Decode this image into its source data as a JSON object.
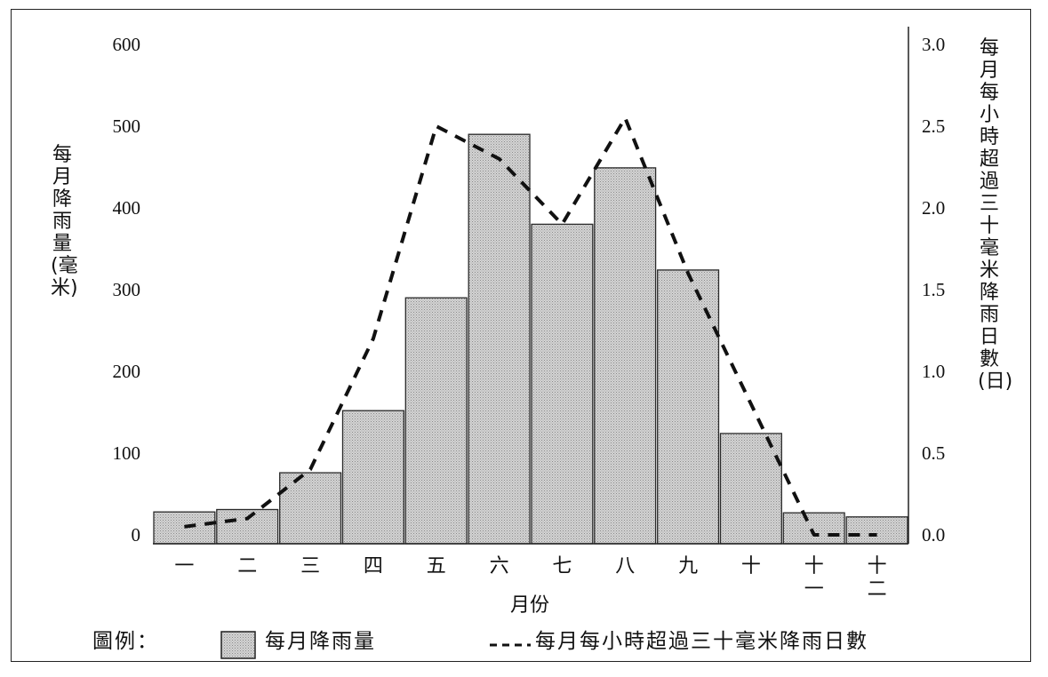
{
  "chart_data": {
    "type": "bar",
    "xlabel": "月份",
    "categories": [
      "一",
      "二",
      "三",
      "四",
      "五",
      "六",
      "七",
      "八",
      "九",
      "十",
      "十一",
      "十二"
    ],
    "series": [
      {
        "name": "每月降雨量",
        "type": "bar",
        "axis": "left",
        "values": [
          28,
          31,
          76,
          152,
          290,
          490,
          380,
          449,
          324,
          124,
          27,
          22
        ]
      },
      {
        "name": "每月每小時超過三十毫米降雨日數",
        "type": "line",
        "style": "dashed",
        "axis": "right",
        "values": [
          0.05,
          0.1,
          0.4,
          1.2,
          2.5,
          2.3,
          1.9,
          2.55,
          1.6,
          0.8,
          0.0,
          0.0
        ]
      }
    ],
    "y_left": {
      "label": "每月降雨量(毫米)",
      "range": [
        0,
        600
      ],
      "ticks": [
        "0",
        "100",
        "200",
        "300",
        "400",
        "500",
        "600"
      ]
    },
    "y_right": {
      "label": "每月每小時超過三十毫米降雨日數(日)",
      "range": [
        0,
        3.0
      ],
      "ticks": [
        "0.0",
        "0.5",
        "1.0",
        "1.5",
        "2.0",
        "2.5",
        "3.0"
      ]
    },
    "grid": false,
    "legend_position": "bottom"
  },
  "legend": {
    "title": "圖例：",
    "bar_label": "每月降雨量",
    "line_label": "每月每小時超過三十毫米降雨日數"
  },
  "colors": {
    "bar_fill": "#c8c8c8",
    "bar_stroke": "#2a2a2a",
    "line": "#111111"
  }
}
